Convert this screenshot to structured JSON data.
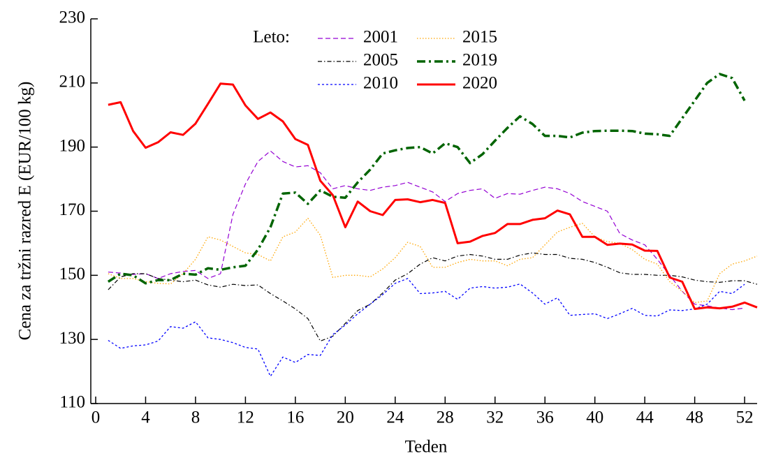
{
  "chart_data": {
    "type": "line",
    "xlabel": "Teden",
    "ylabel": "Cena za tržni razred E (EUR/100 kg)",
    "legend_title": "Leto:",
    "x": [
      1,
      2,
      3,
      4,
      5,
      6,
      7,
      8,
      9,
      10,
      11,
      12,
      13,
      14,
      15,
      16,
      17,
      18,
      19,
      20,
      21,
      22,
      23,
      24,
      25,
      26,
      27,
      28,
      29,
      30,
      31,
      32,
      33,
      34,
      35,
      36,
      37,
      38,
      39,
      40,
      41,
      42,
      43,
      44,
      45,
      46,
      47,
      48,
      49,
      50,
      51,
      52,
      53
    ],
    "xlim": [
      0,
      53
    ],
    "xticks": [
      0,
      4,
      8,
      12,
      16,
      20,
      24,
      28,
      32,
      36,
      40,
      44,
      48,
      52
    ],
    "ylim": [
      110,
      230
    ],
    "yticks": [
      110,
      130,
      150,
      170,
      190,
      210,
      230
    ],
    "series": [
      {
        "name": "2001",
        "color": "#9400d3",
        "style": "dashed",
        "values": [
          151,
          150.7,
          150.3,
          150.5,
          149,
          150.5,
          151.2,
          151.5,
          149,
          150.5,
          169,
          178.5,
          185.5,
          188.8,
          185.5,
          183.8,
          184.2,
          182,
          177,
          178,
          177,
          176.5,
          177.5,
          178,
          179,
          177.5,
          176,
          173,
          175.5,
          176.5,
          177,
          174,
          175.5,
          175.3,
          176.5,
          177.5,
          177,
          175.5,
          173,
          171.5,
          170,
          163,
          161,
          159.5,
          155,
          150,
          145,
          141,
          140.5,
          139.8,
          139.3,
          139.8,
          null
        ]
      },
      {
        "name": "2005",
        "color": "#000000",
        "style": "dash-dot",
        "values": [
          145.5,
          149.5,
          150.5,
          150.5,
          149,
          148.5,
          148,
          148.5,
          147,
          146.3,
          147.2,
          146.8,
          147,
          144.3,
          142,
          139.5,
          136.5,
          129.5,
          131,
          135,
          139,
          141,
          144.5,
          148.5,
          150.5,
          153.5,
          155.5,
          154.5,
          156,
          156.5,
          156,
          155,
          155,
          156.3,
          157,
          156.5,
          156.5,
          155.3,
          155,
          154,
          152.5,
          150.8,
          150.3,
          150.3,
          150,
          150,
          149.5,
          148.5,
          148,
          147.8,
          148.3,
          148.3,
          147.2
        ]
      },
      {
        "name": "2010",
        "color": "#0000ff",
        "style": "dotted-fine",
        "values": [
          129.7,
          127.2,
          128,
          128.3,
          129.5,
          134,
          133.5,
          135.5,
          130.5,
          130,
          129,
          127.5,
          127,
          118.5,
          124.5,
          122.8,
          125.3,
          125,
          131.5,
          134.5,
          138,
          141,
          144,
          147.5,
          149,
          144.3,
          144.5,
          145,
          142.5,
          146,
          146.5,
          146,
          146.3,
          147.3,
          144.5,
          141,
          143,
          137.5,
          137.8,
          138,
          136.5,
          138,
          139.7,
          137.5,
          137.3,
          139.2,
          139,
          139.5,
          141,
          145,
          144.3,
          147.2,
          null
        ]
      },
      {
        "name": "2015",
        "color": "#ffa500",
        "style": "dotted",
        "values": [
          150.5,
          149,
          149,
          148,
          147.5,
          147.3,
          150.5,
          155,
          162,
          161,
          159,
          157,
          156.5,
          154.5,
          162,
          163.5,
          167.8,
          162.5,
          149.3,
          150,
          150,
          149.5,
          152,
          155.5,
          160.3,
          159,
          152.5,
          152.5,
          154,
          155,
          154.5,
          154.5,
          153,
          155,
          155.5,
          159.5,
          163.5,
          165,
          166.2,
          162,
          160.5,
          160,
          158,
          155,
          153.5,
          148,
          145,
          141.5,
          142,
          150.5,
          153.5,
          154.5,
          156
        ]
      },
      {
        "name": "2019",
        "color": "#006400",
        "style": "dash-dot-thick",
        "values": [
          148,
          150.5,
          150,
          147.5,
          148.5,
          148.5,
          150.5,
          150.2,
          152.2,
          151.7,
          152.5,
          153,
          158,
          165,
          175.5,
          175.8,
          172.3,
          176.5,
          174.5,
          174.2,
          179,
          183,
          188,
          189,
          189.7,
          190,
          188,
          191.2,
          190,
          185,
          187.8,
          192,
          196,
          199.6,
          197.2,
          193.5,
          193.5,
          193,
          194.5,
          195,
          195.1,
          195.1,
          195,
          194.2,
          194,
          193.5,
          199,
          204.5,
          210,
          212.8,
          211.5,
          204.5,
          null
        ]
      },
      {
        "name": "2020",
        "color": "#ff0000",
        "style": "solid",
        "values": [
          203.2,
          204,
          195,
          189.8,
          191.5,
          194.6,
          193.8,
          197.3,
          203.5,
          209.8,
          209.5,
          203,
          198.8,
          200.8,
          198,
          192.5,
          190.7,
          179.5,
          175,
          165,
          173,
          170,
          168.8,
          173.5,
          173.7,
          172.8,
          173.5,
          172.6,
          160,
          160.5,
          162.3,
          163.2,
          166,
          166,
          167.3,
          167.8,
          170.2,
          169,
          162,
          162,
          159.5,
          159.9,
          159.6,
          157.7,
          157.6,
          149.3,
          148,
          139.5,
          140,
          139.7,
          140.2,
          141.5,
          140
        ]
      }
    ]
  }
}
